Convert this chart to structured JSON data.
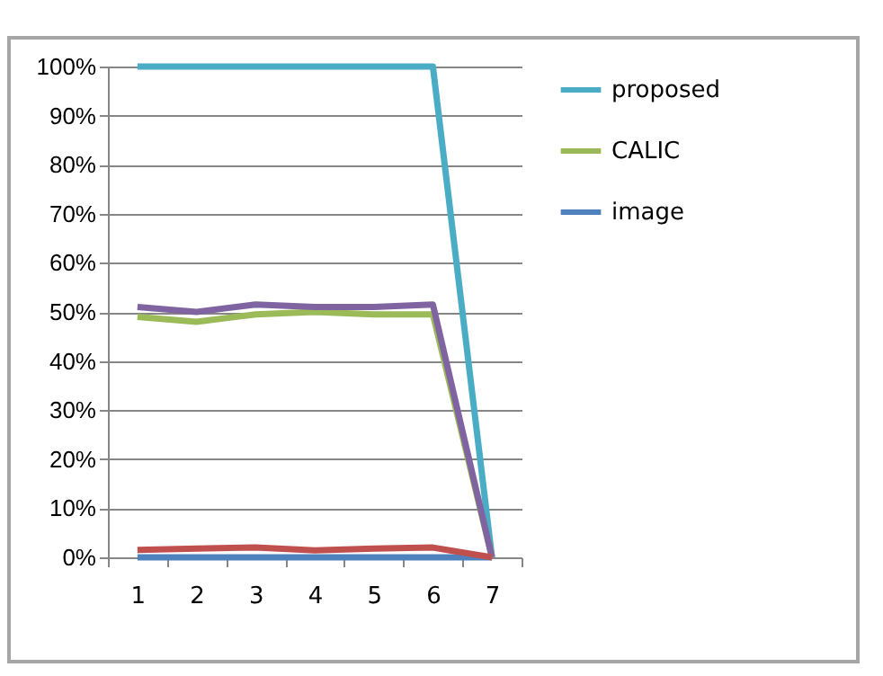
{
  "chart_data": {
    "type": "line",
    "categories": [
      "1",
      "2",
      "3",
      "4",
      "5",
      "6",
      "7"
    ],
    "series": [
      {
        "name": "proposed",
        "color": "#4bacc6",
        "values": [
          100,
          100,
          100,
          100,
          100,
          100,
          0
        ]
      },
      {
        "name": "CALIC",
        "color": "#9bbb59",
        "values": [
          49,
          48,
          49.5,
          50,
          49.5,
          49.5,
          0
        ]
      },
      {
        "name": "image",
        "color": "#4f81bd",
        "values": [
          0,
          0,
          0,
          0,
          0,
          0,
          0
        ]
      },
      {
        "color": "#8064a2",
        "values": [
          51,
          50,
          51.5,
          51,
          51,
          51.5,
          0
        ]
      },
      {
        "color": "#c0504d",
        "values": [
          1.5,
          1.8,
          2,
          1.4,
          1.8,
          2,
          0
        ]
      }
    ],
    "ylim": [
      0,
      100
    ],
    "yticks": [
      {
        "value": 0,
        "label": "0%"
      },
      {
        "value": 10,
        "label": "10%"
      },
      {
        "value": 20,
        "label": "20%"
      },
      {
        "value": 30,
        "label": "30%"
      },
      {
        "value": 40,
        "label": "40%"
      },
      {
        "value": 50,
        "label": "50%"
      },
      {
        "value": 60,
        "label": "60%"
      },
      {
        "value": 70,
        "label": "70%"
      },
      {
        "value": 80,
        "label": "80%"
      },
      {
        "value": 90,
        "label": "90%"
      },
      {
        "value": 100,
        "label": "100%"
      }
    ],
    "grid": "y",
    "legend": "right",
    "marker": "none",
    "line_style": "solid"
  }
}
